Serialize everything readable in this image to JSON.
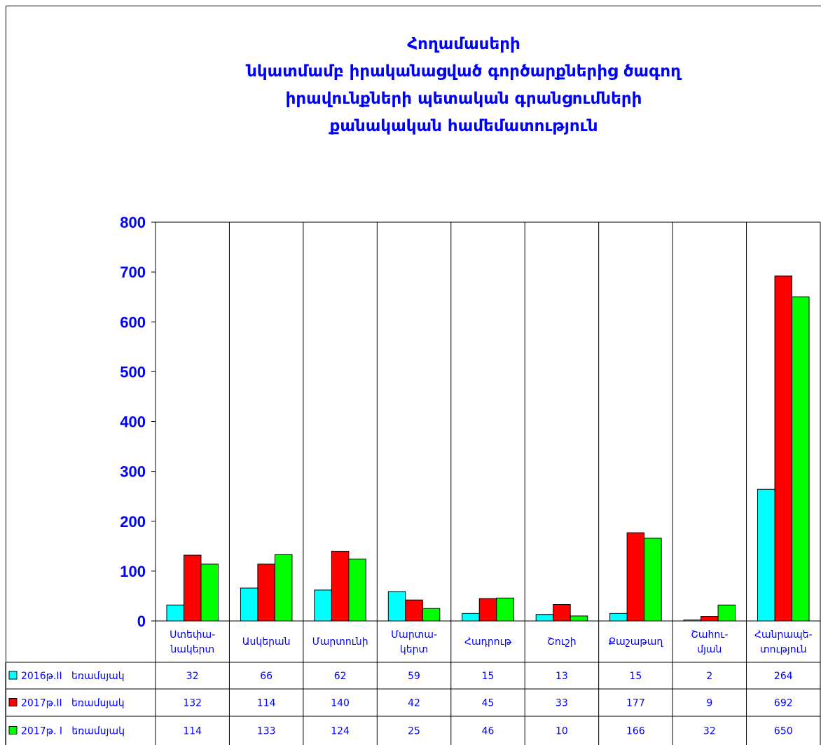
{
  "chart_data": {
    "type": "bar",
    "title": "Հողամասերի\nնկատմամբ  իրականացված  գործարքներից  ծագող\nիրավունքների  պետական  գրանցումների\nքանակական  համեմատություն",
    "categories": [
      "Ստեփա-\nնակերտ",
      "Ասկերան",
      "Մարտունի",
      "Մարտա-\nկերտ",
      "Հադրութ",
      "Շուշի",
      "Քաշաթաղ",
      "Շահու-\nմյան",
      "Հանրապե-\nտություն"
    ],
    "series": [
      {
        "name": "2016թ.II   եռամսյակ",
        "color": "#00ffff",
        "values": [
          32,
          66,
          62,
          59,
          15,
          13,
          15,
          2,
          264
        ]
      },
      {
        "name": "2017թ.II   եռամսյակ",
        "color": "#ff0000",
        "values": [
          132,
          114,
          140,
          42,
          45,
          33,
          177,
          9,
          692
        ]
      },
      {
        "name": "2017թ. I   եռամսյակ",
        "color": "#00ff00",
        "values": [
          114,
          133,
          124,
          25,
          46,
          10,
          166,
          32,
          650
        ]
      }
    ],
    "ylim": [
      0,
      800
    ],
    "yticks": [
      0,
      100,
      200,
      300,
      400,
      500,
      600,
      700,
      800
    ],
    "grid": true
  }
}
